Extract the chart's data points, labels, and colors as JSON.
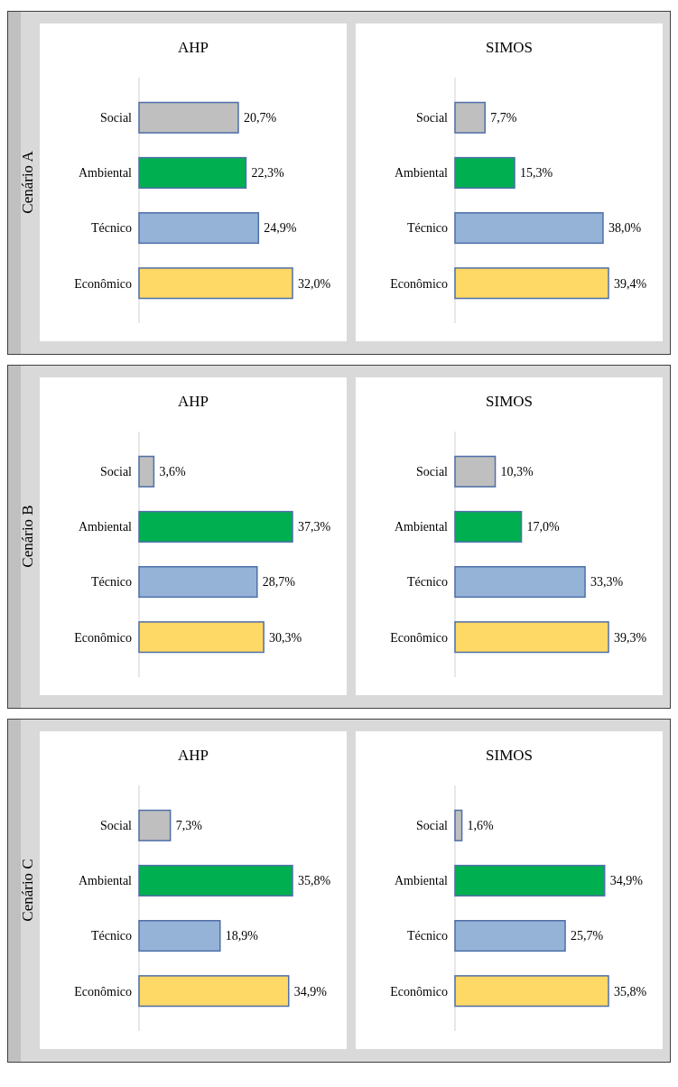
{
  "chart_data": [
    {
      "type": "bar",
      "orientation": "horizontal",
      "title": "AHP",
      "ylabel": "Cenário A",
      "categories": [
        "Social",
        "Ambiental",
        "Técnico",
        "Econômico"
      ],
      "values": [
        20.7,
        22.3,
        24.9,
        32.0
      ],
      "value_labels": [
        "20,7%",
        "22,3%",
        "24,9%",
        "32,0%"
      ],
      "colors": [
        "#bfbfbf",
        "#00b050",
        "#95b3d7",
        "#ffd966"
      ]
    },
    {
      "type": "bar",
      "orientation": "horizontal",
      "title": "SIMOS",
      "categories": [
        "Social",
        "Ambiental",
        "Técnico",
        "Econômico"
      ],
      "values": [
        7.7,
        15.3,
        38.0,
        39.4
      ],
      "value_labels": [
        "7,7%",
        "15,3%",
        "38,0%",
        "39,4%"
      ],
      "colors": [
        "#bfbfbf",
        "#00b050",
        "#95b3d7",
        "#ffd966"
      ]
    },
    {
      "type": "bar",
      "orientation": "horizontal",
      "title": "AHP",
      "ylabel": "Cenário B",
      "categories": [
        "Social",
        "Ambiental",
        "Técnico",
        "Econômico"
      ],
      "values": [
        3.6,
        37.3,
        28.7,
        30.3
      ],
      "value_labels": [
        "3,6%",
        "37,3%",
        "28,7%",
        "30,3%"
      ],
      "colors": [
        "#bfbfbf",
        "#00b050",
        "#95b3d7",
        "#ffd966"
      ]
    },
    {
      "type": "bar",
      "orientation": "horizontal",
      "title": "SIMOS",
      "categories": [
        "Social",
        "Ambiental",
        "Técnico",
        "Econômico"
      ],
      "values": [
        10.3,
        17.0,
        33.3,
        39.3
      ],
      "value_labels": [
        "10,3%",
        "17,0%",
        "33,3%",
        "39,3%"
      ],
      "colors": [
        "#bfbfbf",
        "#00b050",
        "#95b3d7",
        "#ffd966"
      ]
    },
    {
      "type": "bar",
      "orientation": "horizontal",
      "title": "AHP",
      "ylabel": "Cenário C",
      "categories": [
        "Social",
        "Ambiental",
        "Técnico",
        "Econômico"
      ],
      "values": [
        7.3,
        35.8,
        18.9,
        34.9
      ],
      "value_labels": [
        "7,3%",
        "35,8%",
        "18,9%",
        "34,9%"
      ],
      "colors": [
        "#bfbfbf",
        "#00b050",
        "#95b3d7",
        "#ffd966"
      ]
    },
    {
      "type": "bar",
      "orientation": "horizontal",
      "title": "SIMOS",
      "categories": [
        "Social",
        "Ambiental",
        "Técnico",
        "Econômico"
      ],
      "values": [
        1.6,
        34.9,
        25.7,
        35.8
      ],
      "value_labels": [
        "1,6%",
        "34,9%",
        "25,7%",
        "35,8%"
      ],
      "colors": [
        "#bfbfbf",
        "#00b050",
        "#95b3d7",
        "#ffd966"
      ]
    }
  ]
}
